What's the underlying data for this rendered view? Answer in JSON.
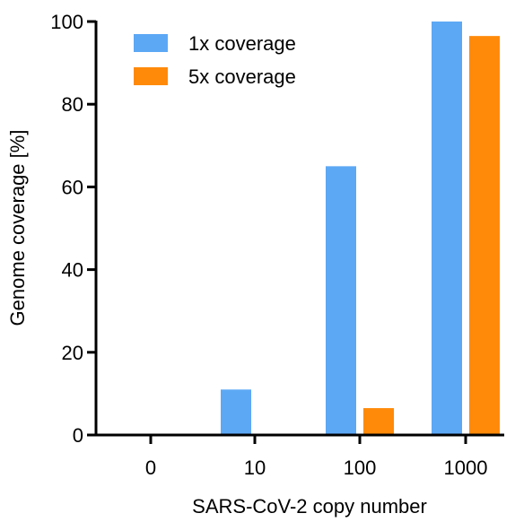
{
  "chart_data": {
    "type": "bar",
    "title": "",
    "xlabel": "SARS-CoV-2 copy number",
    "ylabel": "Genome coverage [%]",
    "ylim": [
      0,
      100
    ],
    "yticks": [
      0,
      20,
      40,
      60,
      80,
      100
    ],
    "categories": [
      "0",
      "10",
      "100",
      "1000"
    ],
    "series": [
      {
        "name": "1x coverage",
        "values": [
          0,
          11,
          65,
          100
        ],
        "color": "#5ca8f5"
      },
      {
        "name": "5x coverage",
        "values": [
          0,
          0,
          6.5,
          96.5
        ],
        "color": "#ff8a0a"
      }
    ],
    "legend_position": "top-left",
    "grid": false
  }
}
